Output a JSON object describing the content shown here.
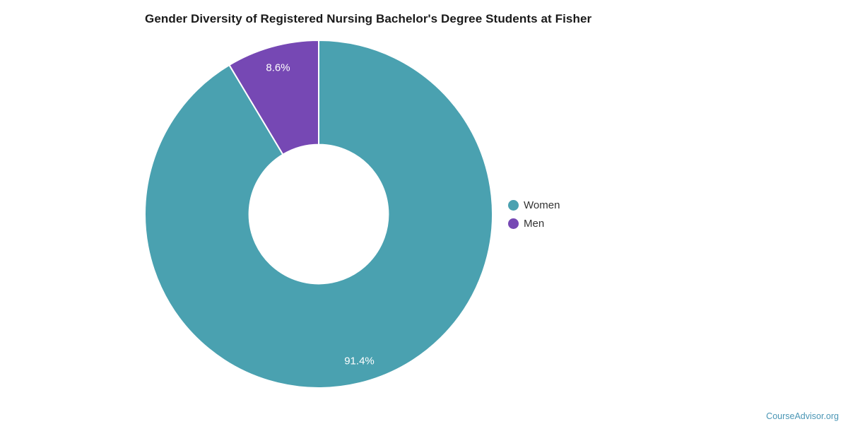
{
  "title": "Gender Diversity of Registered Nursing Bachelor's Degree Students at Fisher",
  "watermark": "CourseAdvisor.org",
  "colors": {
    "women": "#4aa1b0",
    "men": "#7648b4",
    "slice_border": "#ffffff",
    "title_text": "#1a1a1a",
    "legend_text": "#333333",
    "watermark_text": "#4a96b5"
  },
  "chart_data": {
    "type": "pie",
    "donut": true,
    "title": "Gender Diversity of Registered Nursing Bachelor's Degree Students at Fisher",
    "categories": [
      "Women",
      "Men"
    ],
    "values": [
      91.4,
      8.6
    ],
    "value_labels": [
      "91.4%",
      "8.6%"
    ],
    "slice_colors": [
      "#4aa1b0",
      "#7648b4"
    ],
    "start_angle_deg": 0,
    "direction": "clockwise",
    "inner_radius_ratio": 0.4,
    "label_radius_ratio": 0.875,
    "legend_position": "right",
    "legend": [
      {
        "label": "Women",
        "color": "#4aa1b0"
      },
      {
        "label": "Men",
        "color": "#7648b4"
      }
    ]
  }
}
